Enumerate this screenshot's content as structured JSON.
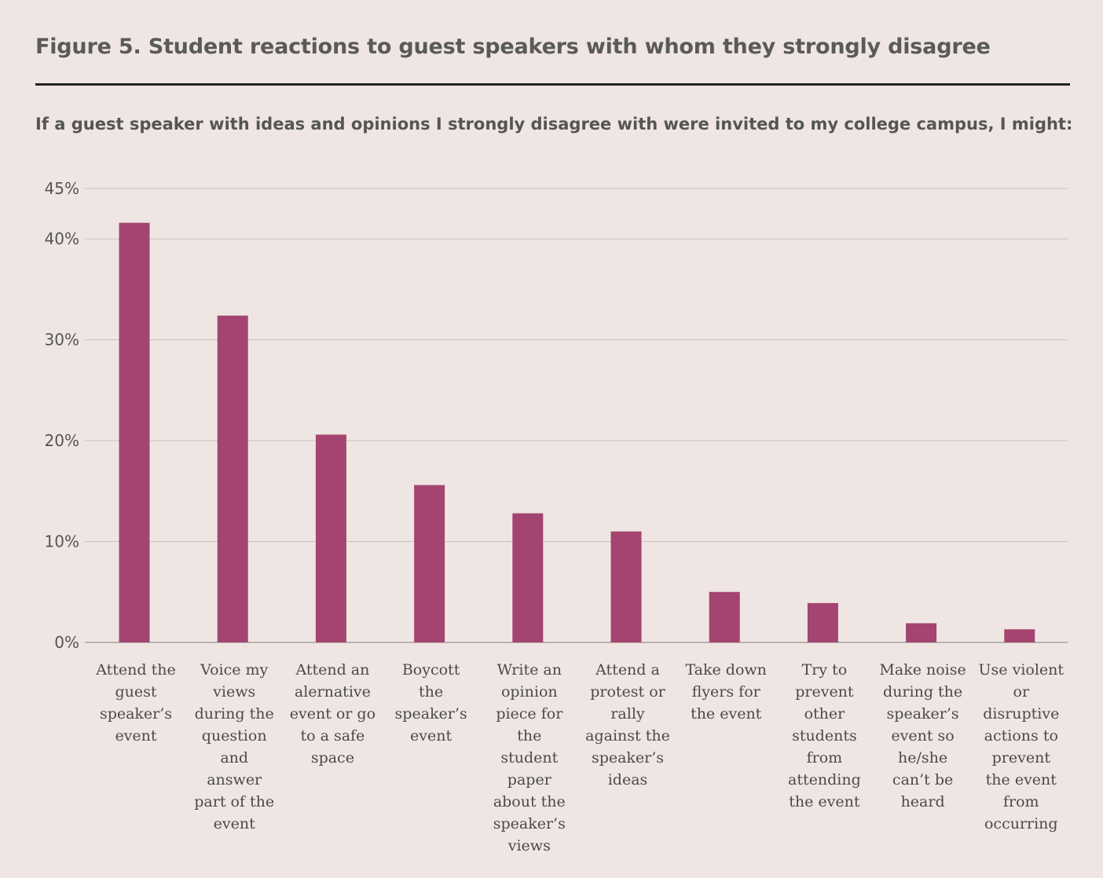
{
  "title": "Figure 5. Student reactions to guest speakers with whom they strongly disagree",
  "subtitle": "If a guest speaker with ideas and opinions I strongly disagree with were invited to my college campus, I might:",
  "colors": {
    "bar": "#a34570",
    "grid": "#c9c0bd",
    "axis": "#a9a09d",
    "background": "#efe6e3"
  },
  "chart_data": {
    "type": "bar",
    "title": "Figure 5. Student reactions to guest speakers with whom they strongly disagree",
    "subtitle": "If a guest speaker with ideas and opinions I strongly disagree with were invited to my college campus, I might:",
    "xlabel": "",
    "ylabel": "",
    "ylim": [
      0,
      45
    ],
    "yticks": [
      0,
      10,
      20,
      30,
      40,
      45
    ],
    "ytick_labels": [
      "0%",
      "10%",
      "20%",
      "30%",
      "40%",
      "45%"
    ],
    "grid": true,
    "categories": [
      "Attend the guest speaker’s event",
      "Voice my views during the question and answer part of the event",
      "Attend an alernative event or go to a safe space",
      "Boycott the speaker’s event",
      "Write an opinion piece for the student paper about the speaker’s views",
      "Attend a protest or rally against the speaker’s ideas",
      "Take down flyers for the event",
      "Try to prevent other students from attending the event",
      "Make noise during the speaker’s event so he/she can’t be heard",
      "Use violent or disruptive actions to prevent the event from occurring"
    ],
    "category_lines": [
      "Attend the\nguest\nspeaker’s\nevent",
      "Voice my\nviews\nduring the\nquestion\nand\nanswer\npart of the\nevent",
      "Attend an\nalernative\nevent or go\nto a safe\nspace",
      "Boycott\nthe\nspeaker’s\nevent",
      "Write an\nopinion\npiece for\nthe\nstudent\npaper\nabout the\nspeaker’s\nviews",
      "Attend a\nprotest or\nrally\nagainst the\nspeaker’s\nideas",
      "Take down\nflyers for\nthe event",
      "Try to\nprevent\nother\nstudents\nfrom\nattending\nthe event",
      "Make noise\nduring the\nspeaker’s\nevent so\nhe/she\ncan’t be\nheard",
      "Use violent\nor\ndisruptive\nactions to\nprevent\nthe event\nfrom\noccurring"
    ],
    "values": [
      41.6,
      32.4,
      20.6,
      15.6,
      12.8,
      11.0,
      5.0,
      3.9,
      1.9,
      1.3
    ]
  }
}
